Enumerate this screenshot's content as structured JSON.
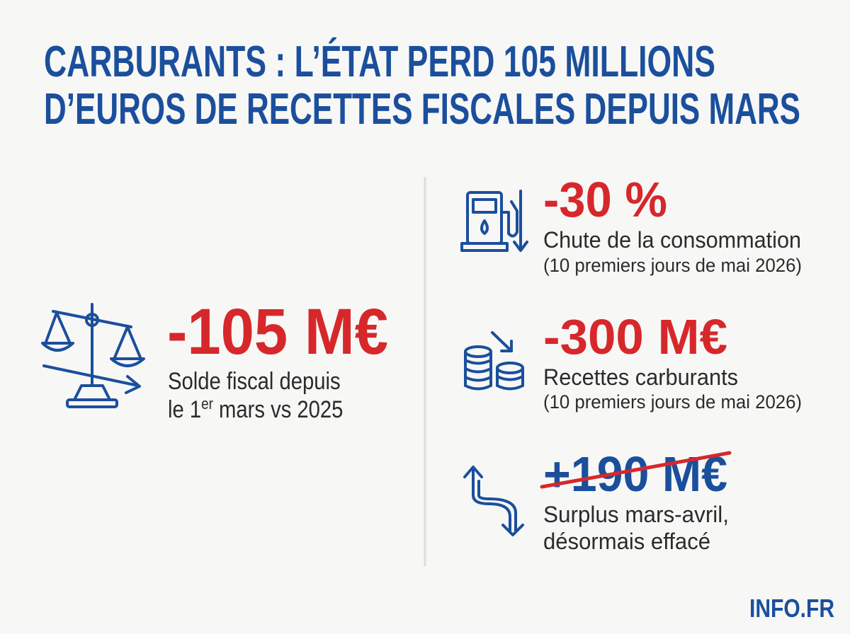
{
  "header": {
    "title_lines": [
      "CARBURANTS : L’ÉTAT PERD 105 MILLIONS",
      "D’EUROS DE RECETTES FISCALES DEPUIS MARS"
    ]
  },
  "main_stat": {
    "value": "-105 M€",
    "description_line1": "Solde fiscal depuis",
    "description_line2_parts": [
      "le 1",
      "er",
      " mars vs 2025"
    ]
  },
  "stats": [
    {
      "value": "-30 %",
      "label": "Chute de la consommation",
      "note": "(10 premiers jours de mai 2026)"
    },
    {
      "value": "-300 M€",
      "label": "Recettes carburants",
      "note": "(10 premiers jours de mai 2026)"
    },
    {
      "value": "+190 M€",
      "label": "Surplus mars-avril,",
      "note": "désormais effacé"
    }
  ],
  "footer": {
    "brand": "INFO.FR"
  }
}
